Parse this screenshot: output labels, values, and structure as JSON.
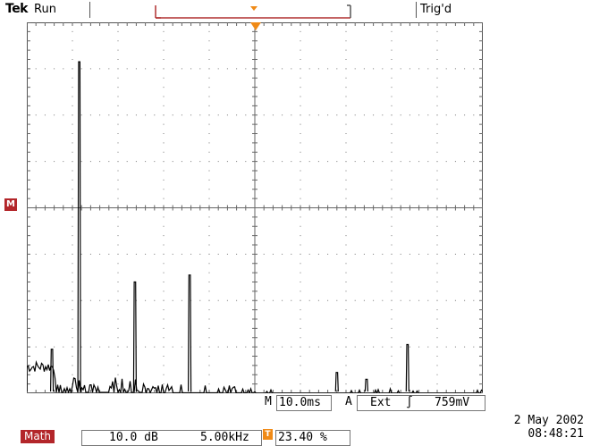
{
  "header": {
    "brand": "Tek",
    "acq_state": "Run",
    "trigger_state": "Trig'd"
  },
  "timebase": {
    "label_m": "M",
    "value": "10.0ms",
    "trigger_source_label": "A",
    "trigger_source": "Ext",
    "trigger_slope_glyph": "∫",
    "trigger_level": "759mV"
  },
  "math": {
    "label": "Math",
    "vertical_scale": "10.0 dB",
    "horizontal_scale": "5.00kHz",
    "trigger_marker": "T",
    "position": "23.40 %"
  },
  "marker": {
    "label": "M"
  },
  "datetime": {
    "date": "2 May 2002",
    "time": "08:48:21"
  },
  "colors": {
    "math_red": "#b3262a",
    "trigger_orange": "#f08a16",
    "trace": "#000000"
  },
  "chart_data": {
    "type": "line",
    "x_divisions": 10,
    "y_divisions": 8,
    "peaks": [
      {
        "x_div": 1.15,
        "level_div": 7.15
      },
      {
        "x_div": 2.37,
        "level_div": 2.4
      },
      {
        "x_div": 3.57,
        "level_div": 2.55
      },
      {
        "x_div": 8.35,
        "level_div": 1.05
      },
      {
        "x_div": 0.55,
        "level_div": 0.95
      },
      {
        "x_div": 6.8,
        "level_div": 0.45
      },
      {
        "x_div": 7.45,
        "level_div": 0.3
      }
    ]
  }
}
